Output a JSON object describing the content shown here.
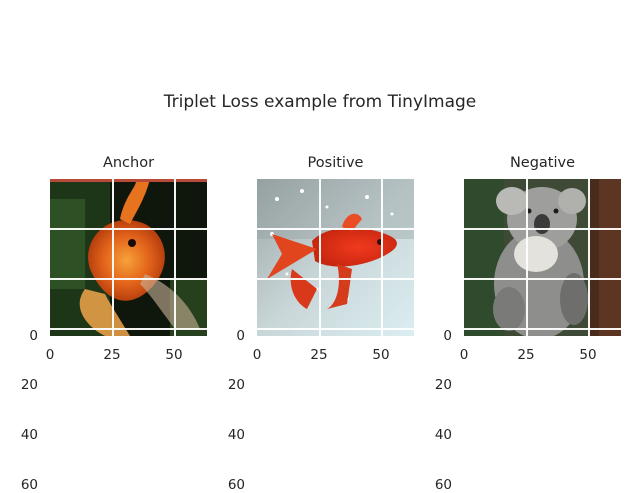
{
  "figure": {
    "title": "Triplet Loss example from TinyImage"
  },
  "panels": [
    {
      "title": "Anchor",
      "image": "goldfish-photo",
      "yticks": [
        "0",
        "20",
        "40",
        "60"
      ],
      "xticks": [
        "0",
        "25",
        "50"
      ]
    },
    {
      "title": "Positive",
      "image": "red-goldfish-photo",
      "yticks": [
        "0",
        "20",
        "40",
        "60"
      ],
      "xticks": [
        "0",
        "25",
        "50"
      ]
    },
    {
      "title": "Negative",
      "image": "koala-photo",
      "yticks": [
        "0",
        "20",
        "40",
        "60"
      ],
      "xticks": [
        "0",
        "25",
        "50"
      ]
    }
  ]
}
